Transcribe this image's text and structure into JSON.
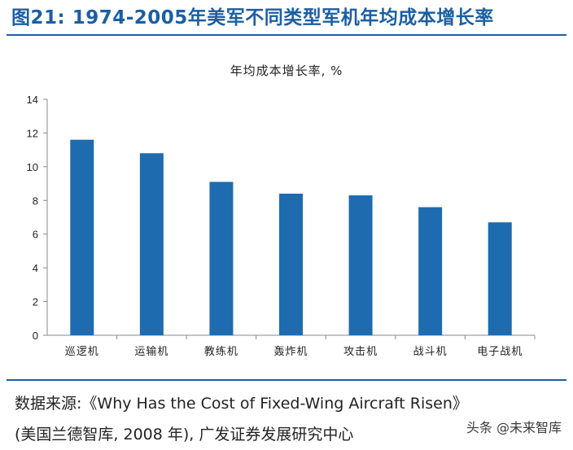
{
  "header": {
    "title": "图21: 1974-2005年美军不同类型军机年均成本增长率"
  },
  "chart_data": {
    "type": "bar",
    "title": "年均成本增长率, %",
    "categories": [
      "巡逻机",
      "运输机",
      "教练机",
      "轰炸机",
      "攻击机",
      "战斗机",
      "电子战机"
    ],
    "values": [
      11.6,
      10.8,
      9.1,
      8.4,
      8.3,
      7.6,
      6.7
    ],
    "ylim": [
      0,
      14
    ],
    "yticks": [
      0,
      2,
      4,
      6,
      8,
      10,
      12,
      14
    ],
    "xlabel": "",
    "ylabel": "",
    "grid": false,
    "bar_color": "#1f6bb0"
  },
  "source": {
    "line1": "数据来源:《Why Has the Cost of Fixed-Wing Aircraft Risen》",
    "line2": "(美国兰德智库, 2008 年), 广发证券发展研究中心"
  },
  "watermark": "头条 @未来智库"
}
